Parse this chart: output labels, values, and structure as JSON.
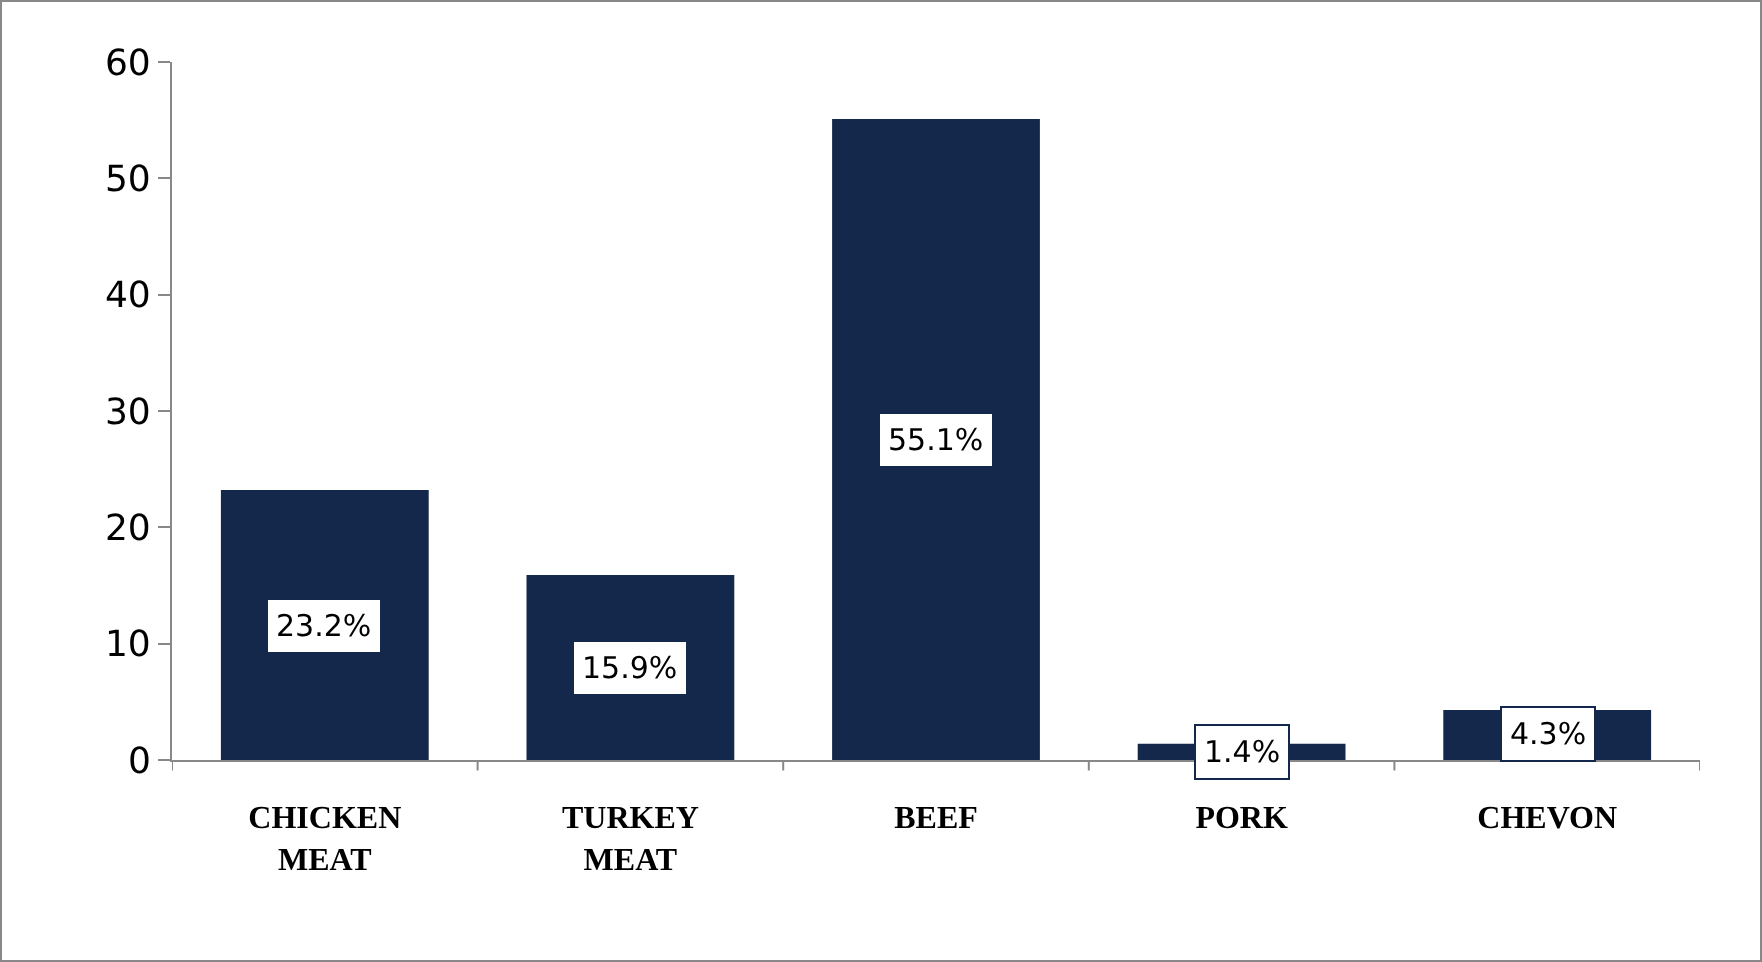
{
  "chart_data": {
    "type": "bar",
    "categories": [
      "CHICKEN MEAT",
      "TURKEY MEAT",
      "BEEF",
      "PORK",
      "CHEVON"
    ],
    "values": [
      23.2,
      15.9,
      55.1,
      1.4,
      4.3
    ],
    "value_labels": [
      "23.2%",
      "15.9%",
      "55.1%",
      "1.4%",
      "4.3%"
    ],
    "color": "#13284a",
    "ylim": [
      0,
      60
    ],
    "yticks": [
      0,
      10,
      20,
      30,
      40,
      50,
      60
    ],
    "grid": false
  }
}
